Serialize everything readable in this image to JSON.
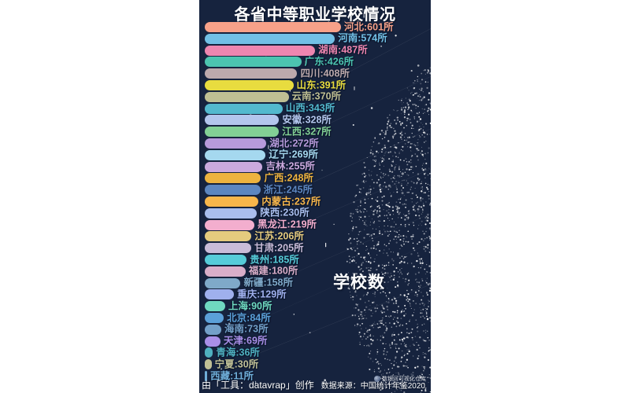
{
  "title": "各省中等职业学校情况",
  "axis_label": "学校数",
  "footer": {
    "credit": "由「工具：datavrap」创作",
    "source": "数据来源：中国统计年鉴2020",
    "watermark": "数银河可视化仓库"
  },
  "colors": {
    "page_background": "#FFFFFF",
    "panel_background": "#16233E",
    "title_text": "#FFFFFF",
    "axis_label_text": "#FFFFFF",
    "footer_text": "#FFFFFF",
    "star_color": "#FFFFFF"
  },
  "chart_data": {
    "type": "bar",
    "orientation": "horizontal",
    "title": "各省中等职业学校情况",
    "xlabel": "学校数",
    "value_separator": ":",
    "value_suffix": "所",
    "max_value": 601,
    "legend": "none",
    "grid": false,
    "categories": [
      "河北",
      "河南",
      "湖南",
      "广东",
      "四川",
      "山东",
      "云南",
      "山西",
      "安徽",
      "江西",
      "湖北",
      "辽宁",
      "吉林",
      "广西",
      "浙江",
      "内蒙古",
      "陕西",
      "黑龙江",
      "江苏",
      "甘肃",
      "贵州",
      "福建",
      "新疆",
      "重庆",
      "上海",
      "北京",
      "海南",
      "天津",
      "青海",
      "宁夏",
      "西藏"
    ],
    "values": [
      601,
      574,
      487,
      426,
      408,
      391,
      370,
      343,
      328,
      327,
      272,
      269,
      255,
      248,
      245,
      237,
      230,
      219,
      206,
      205,
      185,
      180,
      158,
      129,
      90,
      84,
      73,
      69,
      36,
      30,
      11
    ],
    "bar_colors": [
      "#F7A189",
      "#72C0E6",
      "#EE86B0",
      "#4CC4B0",
      "#BCA9AC",
      "#E8DC3F",
      "#BFBF93",
      "#53B9CE",
      "#B3C6ED",
      "#82D095",
      "#B79ADB",
      "#A5D8EF",
      "#CBA9DE",
      "#EDB33F",
      "#5C86C0",
      "#F7B64B",
      "#A9BEED",
      "#F3AECE",
      "#E5CB7E",
      "#C9BCD9",
      "#56CCD9",
      "#D9AEC9",
      "#7FA9C9",
      "#9FB0ED",
      "#6FD9C0",
      "#5BA0D9",
      "#73A0C9",
      "#A98FE8",
      "#4FB0C0",
      "#C0C096",
      "#6FAED9"
    ]
  }
}
